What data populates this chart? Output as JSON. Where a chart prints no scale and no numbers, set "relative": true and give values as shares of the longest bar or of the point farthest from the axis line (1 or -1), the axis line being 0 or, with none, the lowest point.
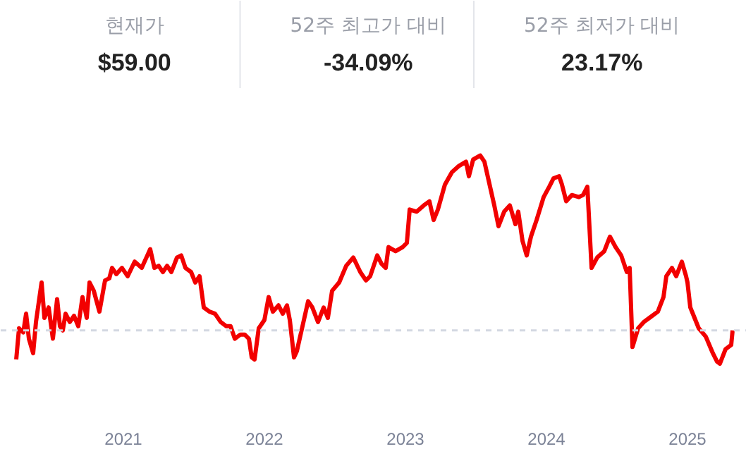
{
  "chart_data": {
    "type": "line",
    "relative": true,
    "annotations": [
      "현재가",
      "$59.00",
      "52주 최고가 대비",
      "-34.09%",
      "52주 최저가 대비",
      "23.17%"
    ],
    "x": [
      2020.24,
      2020.26,
      2020.29,
      2020.31,
      2020.33,
      2020.36,
      2020.38,
      2020.42,
      2020.44,
      2020.47,
      2020.5,
      2020.53,
      2020.55,
      2020.57,
      2020.59,
      2020.62,
      2020.65,
      2020.68,
      2020.71,
      2020.74,
      2020.76,
      2020.79,
      2020.83,
      2020.87,
      2020.9,
      2020.92,
      2020.95,
      2020.99,
      2021.03,
      2021.08,
      2021.13,
      2021.17,
      2021.19,
      2021.22,
      2021.25,
      2021.28,
      2021.31,
      2021.34,
      2021.38,
      2021.41,
      2021.44,
      2021.48,
      2021.51,
      2021.54,
      2021.57,
      2021.61,
      2021.65,
      2021.69,
      2021.73,
      2021.76,
      2021.79,
      2021.83,
      2021.86,
      2021.89,
      2021.91,
      2021.93,
      2021.96,
      2022.0,
      2022.03,
      2022.06,
      2022.1,
      2022.13,
      2022.16,
      2022.18,
      2022.21,
      2022.23,
      2022.27,
      2022.31,
      2022.34,
      2022.38,
      2022.42,
      2022.45,
      2022.48,
      2022.53,
      2022.58,
      2022.63,
      2022.68,
      2022.72,
      2022.75,
      2022.8,
      2022.83,
      2022.86,
      2022.88,
      2022.93,
      2022.98,
      2023.01,
      2023.03,
      2023.08,
      2023.13,
      2023.17,
      2023.2,
      2023.23,
      2023.28,
      2023.33,
      2023.38,
      2023.43,
      2023.45,
      2023.48,
      2023.53,
      2023.56,
      2023.59,
      2023.63,
      2023.66,
      2023.7,
      2023.74,
      2023.78,
      2023.8,
      2023.83,
      2023.86,
      2023.89,
      2023.93,
      2023.98,
      2024.02,
      2024.05,
      2024.09,
      2024.11,
      2024.14,
      2024.18,
      2024.23,
      2024.26,
      2024.29,
      2024.32,
      2024.36,
      2024.41,
      2024.45,
      2024.49,
      2024.53,
      2024.57,
      2024.59,
      2024.61,
      2024.65,
      2024.69,
      2024.73,
      2024.79,
      2024.83,
      2024.85,
      2024.89,
      2024.92,
      2024.96,
      2024.99,
      2025.0,
      2025.02,
      2025.05,
      2025.08,
      2025.13,
      2025.18,
      2025.21,
      2025.23,
      2025.27,
      2025.31,
      2025.32
    ],
    "series": [
      {
        "color": "#f20000",
        "values": [
          0.02,
          0.17,
          0.15,
          0.24,
          0.12,
          0.05,
          0.2,
          0.39,
          0.22,
          0.27,
          0.12,
          0.31,
          0.18,
          0.16,
          0.24,
          0.2,
          0.23,
          0.18,
          0.32,
          0.22,
          0.39,
          0.35,
          0.25,
          0.4,
          0.41,
          0.46,
          0.43,
          0.46,
          0.42,
          0.49,
          0.46,
          0.52,
          0.55,
          0.46,
          0.47,
          0.44,
          0.47,
          0.44,
          0.51,
          0.52,
          0.46,
          0.44,
          0.39,
          0.42,
          0.27,
          0.25,
          0.24,
          0.2,
          0.18,
          0.18,
          0.12,
          0.14,
          0.14,
          0.12,
          0.03,
          0.02,
          0.17,
          0.21,
          0.32,
          0.25,
          0.28,
          0.24,
          0.28,
          0.21,
          0.03,
          0.06,
          0.18,
          0.3,
          0.27,
          0.2,
          0.27,
          0.22,
          0.35,
          0.39,
          0.47,
          0.51,
          0.44,
          0.4,
          0.42,
          0.52,
          0.48,
          0.46,
          0.56,
          0.54,
          0.56,
          0.58,
          0.74,
          0.73,
          0.76,
          0.78,
          0.69,
          0.74,
          0.86,
          0.92,
          0.95,
          0.97,
          0.9,
          0.98,
          1.0,
          0.97,
          0.88,
          0.76,
          0.66,
          0.73,
          0.76,
          0.67,
          0.73,
          0.59,
          0.52,
          0.61,
          0.69,
          0.8,
          0.85,
          0.89,
          0.9,
          0.86,
          0.78,
          0.81,
          0.8,
          0.81,
          0.85,
          0.46,
          0.51,
          0.54,
          0.61,
          0.56,
          0.52,
          0.44,
          0.46,
          0.08,
          0.17,
          0.2,
          0.22,
          0.25,
          0.32,
          0.42,
          0.46,
          0.42,
          0.49,
          0.42,
          0.39,
          0.27,
          0.22,
          0.17,
          0.13,
          0.05,
          0.01,
          0.0,
          0.07,
          0.09,
          0.16
        ]
      }
    ],
    "xlim": [
      2020.13,
      2025.42
    ],
    "xticks": [
      2021,
      2022,
      2023,
      2024,
      2025
    ],
    "ref_lines": [
      {
        "axis": "y",
        "value": 0.16,
        "color": "#d3d8e2",
        "line_style": "dashed"
      }
    ],
    "grid": false,
    "marker": "none",
    "line_style": "solid"
  }
}
